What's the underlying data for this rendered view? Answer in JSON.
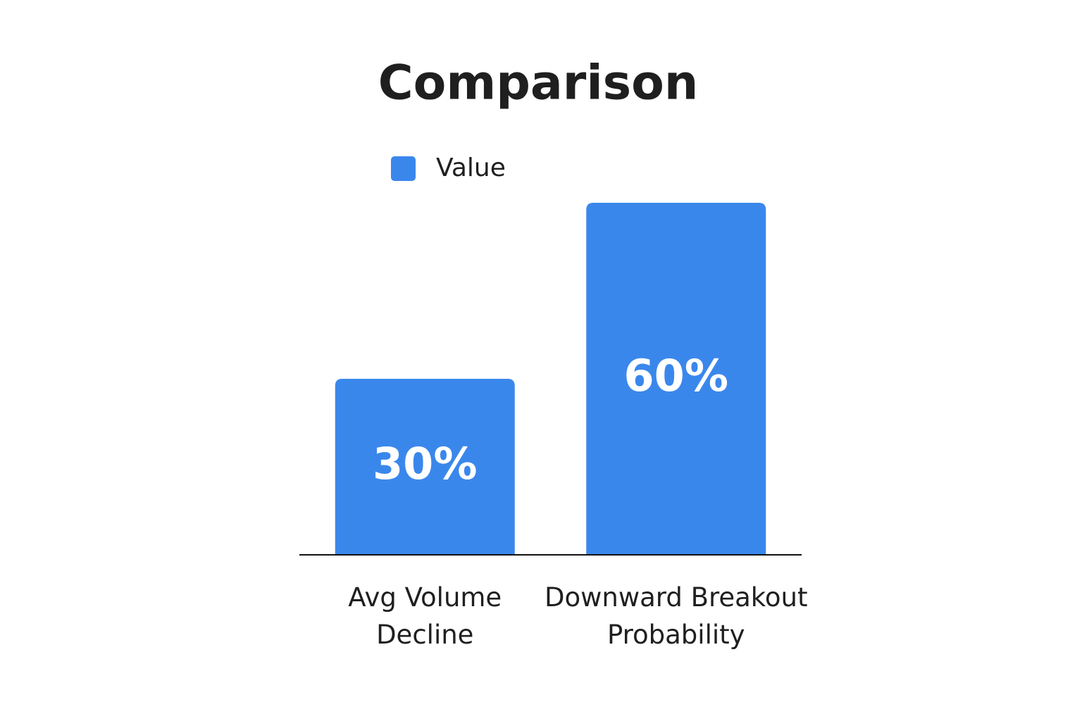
{
  "chart_data": {
    "type": "bar",
    "title": "Comparison",
    "categories": [
      "Avg Volume Decline",
      "Downward Breakout Probability"
    ],
    "series": [
      {
        "name": "Value",
        "color": "#3a87ec",
        "values": [
          30,
          60
        ],
        "value_labels": [
          "30%",
          "60%"
        ]
      }
    ],
    "ylim": [
      0,
      60
    ]
  }
}
